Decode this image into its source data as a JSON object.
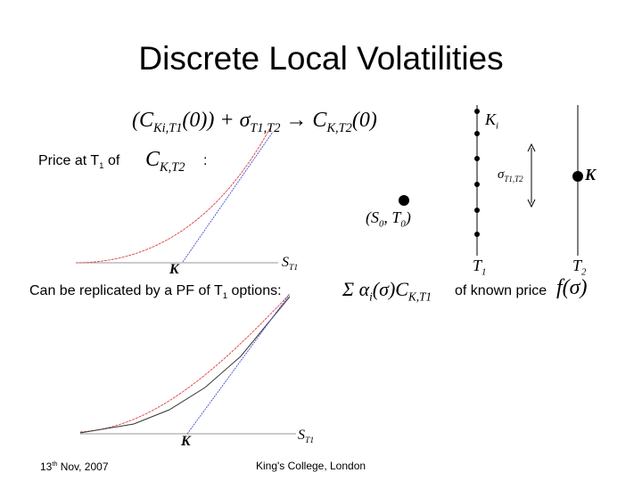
{
  "title": "Discrete Local Volatilities",
  "price_line": [
    {
      "t": "Price at T",
      "sub": "1"
    },
    {
      "t": " of "
    }
  ],
  "price_formula": [
    {
      "t": "C",
      "sub": "K,T2"
    }
  ],
  "price_colon": ":",
  "top_formula": [
    {
      "t": "(C",
      "sub": "Ki,T1"
    },
    {
      "t": "(0)) + σ",
      "sub": "T1,T2"
    },
    {
      "t": " → C",
      "sub": "K,T2"
    },
    {
      "t": "(0)"
    }
  ],
  "graph1": {
    "x_label": [
      {
        "t": "S",
        "sub": "T1"
      }
    ],
    "strike": "K"
  },
  "diagram": {
    "ki": [
      {
        "t": "K",
        "sub": "i"
      }
    ],
    "sigma": [
      {
        "t": "σ",
        "sub": "T1,T2"
      }
    ],
    "k": "K",
    "s0": [
      {
        "t": "(S",
        "sub": "0"
      },
      {
        "t": ", T",
        "sub": "0"
      },
      {
        "t": ")"
      }
    ],
    "t1": [
      {
        "t": "T",
        "sub": "1"
      }
    ],
    "t2": [
      {
        "t": "T",
        "sub": "2"
      }
    ]
  },
  "replicate_line": [
    {
      "t": "Can be replicated by a PF of T",
      "sub": "1"
    },
    {
      "t": " options:"
    }
  ],
  "replicate_formula": [
    {
      "t": "Σ α",
      "sub": "i"
    },
    {
      "t": "(σ)C",
      "sub": "K,T1"
    }
  ],
  "known_price": "of known price",
  "price_function": "f(σ)",
  "graph2": {
    "x_label": [
      {
        "t": "S",
        "sub": "T1"
      }
    ],
    "strike": "K"
  },
  "footer": {
    "date": [
      {
        "t": "13",
        "sup": "th"
      },
      {
        "t": " Nov, 2007"
      }
    ],
    "place": "King's College, London"
  }
}
